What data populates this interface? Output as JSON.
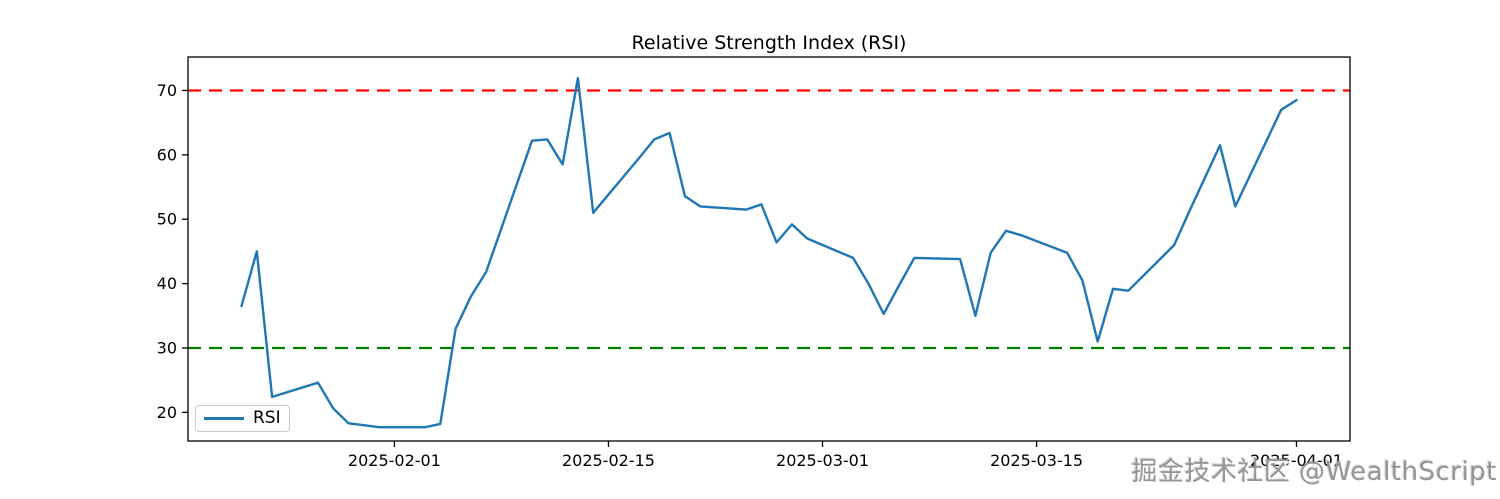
{
  "chart": {
    "title": "Relative Strength Index (RSI)",
    "watermark": "掘金技术社区 @WealthScript",
    "legend": {
      "label": "RSI"
    }
  },
  "colors": {
    "rsi_line": "#1f77b4",
    "overbought_line": "#ff0000",
    "oversold_line": "#008000",
    "axis": "#000000",
    "watermark": "#969696"
  },
  "chart_data": {
    "type": "line",
    "title": "Relative Strength Index (RSI)",
    "xlabel": "",
    "ylabel": "",
    "grid": false,
    "legend_position": "lower left",
    "x": [
      "2025-01-22",
      "2025-01-23",
      "2025-01-24",
      "2025-01-27",
      "2025-01-28",
      "2025-01-29",
      "2025-01-30",
      "2025-01-31",
      "2025-02-03",
      "2025-02-04",
      "2025-02-05",
      "2025-02-06",
      "2025-02-07",
      "2025-02-10",
      "2025-02-11",
      "2025-02-12",
      "2025-02-13",
      "2025-02-14",
      "2025-02-17",
      "2025-02-18",
      "2025-02-19",
      "2025-02-20",
      "2025-02-21",
      "2025-02-24",
      "2025-02-25",
      "2025-02-26",
      "2025-02-27",
      "2025-02-28",
      "2025-03-03",
      "2025-03-04",
      "2025-03-05",
      "2025-03-06",
      "2025-03-07",
      "2025-03-10",
      "2025-03-11",
      "2025-03-12",
      "2025-03-13",
      "2025-03-14",
      "2025-03-17",
      "2025-03-18",
      "2025-03-19",
      "2025-03-20",
      "2025-03-21",
      "2025-03-24",
      "2025-03-25",
      "2025-03-26",
      "2025-03-27",
      "2025-03-28",
      "2025-03-31",
      "2025-04-01"
    ],
    "series": [
      {
        "name": "RSI",
        "color": "#1f77b4",
        "values": [
          36.5,
          45.0,
          22.4,
          24.6,
          20.6,
          18.3,
          18.0,
          17.7,
          17.7,
          18.2,
          33.0,
          38.0,
          41.8,
          62.2,
          62.4,
          58.5,
          71.9,
          51.0,
          59.5,
          62.4,
          63.4,
          53.6,
          52.0,
          51.5,
          52.3,
          46.4,
          49.2,
          47.0,
          44.0,
          40.0,
          35.3,
          39.7,
          44.0,
          43.8,
          35.0,
          44.8,
          48.2,
          47.5,
          44.8,
          40.5,
          31.0,
          39.2,
          38.9,
          46.0,
          51.3,
          56.4,
          61.5,
          52.0,
          67.0,
          68.5
        ]
      }
    ],
    "reference_lines": [
      {
        "name": "overbought",
        "value": 70,
        "color": "#ff0000",
        "style": "dashed"
      },
      {
        "name": "oversold",
        "value": 30,
        "color": "#008000",
        "style": "dashed"
      }
    ],
    "x_ticks": [
      "2025-02-01",
      "2025-02-15",
      "2025-03-01",
      "2025-03-15",
      "2025-04-01"
    ],
    "y_ticks": [
      20,
      30,
      40,
      50,
      60,
      70
    ],
    "xlim": [
      "2025-01-18T12:00:00Z",
      "2025-04-04T12:00:00Z"
    ],
    "ylim": [
      15.55,
      75.2
    ]
  }
}
